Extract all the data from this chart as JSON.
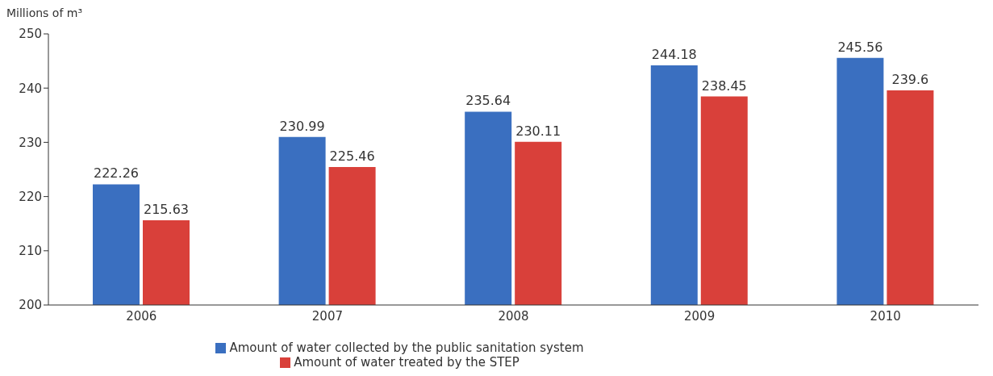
{
  "chart_data": {
    "type": "bar",
    "ylabel": "Millions of m³",
    "categories": [
      "2006",
      "2007",
      "2008",
      "2009",
      "2010"
    ],
    "series": [
      {
        "name": "Amount of water collected by the public sanitation system",
        "color": "#3a6fc0",
        "values": [
          222.26,
          230.99,
          235.64,
          244.18,
          245.56
        ]
      },
      {
        "name": "Amount of water treated by the STEP",
        "color": "#d9403a",
        "values": [
          215.63,
          225.46,
          230.11,
          238.45,
          239.6
        ]
      }
    ],
    "ylim": [
      200,
      250
    ],
    "yticks": [
      200,
      210,
      220,
      230,
      240,
      250
    ],
    "grid": false,
    "legend": "bottom",
    "data_labels": true
  }
}
